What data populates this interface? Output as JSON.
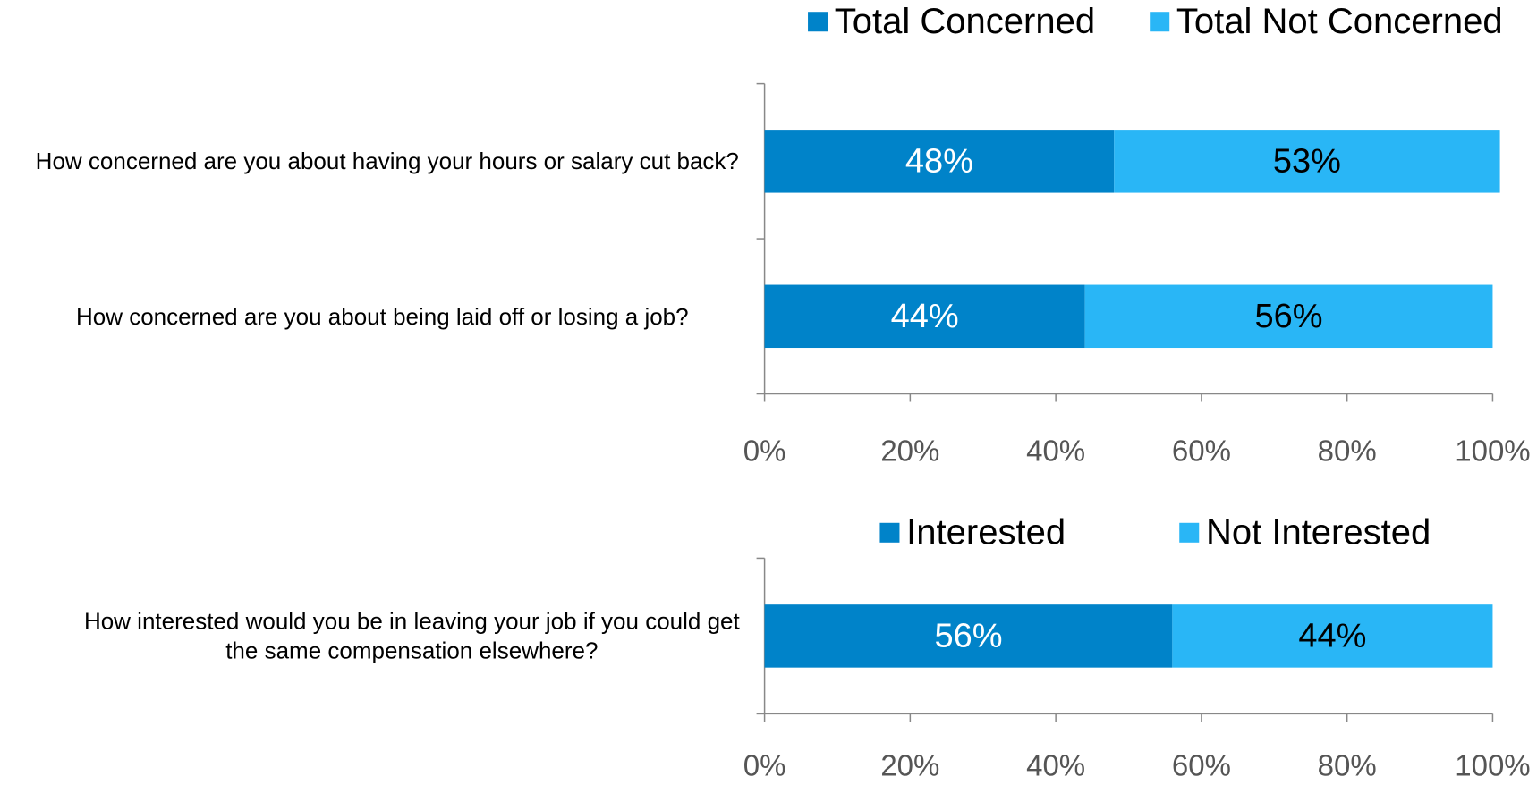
{
  "chart_data": [
    {
      "type": "stacked-bar-horizontal",
      "categories": [
        "How concerned are you about having your hours or salary cut back?",
        "How concerned are you about being laid off or losing a job?"
      ],
      "series": [
        {
          "name": "Total Concerned",
          "color": "#0083c9",
          "values": [
            48,
            44
          ],
          "value_labels": [
            "48%",
            "44%"
          ]
        },
        {
          "name": "Total Not Concerned",
          "color": "#29b6f6",
          "values": [
            53,
            56
          ],
          "value_labels": [
            "53%",
            "56%"
          ]
        }
      ],
      "xlim": [
        0,
        100
      ],
      "xticks": [
        {
          "value": 0,
          "label": "0%"
        },
        {
          "value": 20,
          "label": "20%"
        },
        {
          "value": 40,
          "label": "40%"
        },
        {
          "value": 60,
          "label": "60%"
        },
        {
          "value": 80,
          "label": "80%"
        },
        {
          "value": 100,
          "label": "100%"
        }
      ],
      "legend": "top"
    },
    {
      "type": "stacked-bar-horizontal",
      "categories": [
        "How interested would you be in leaving your job if you could get the same compensation elsewhere?"
      ],
      "series": [
        {
          "name": "Interested",
          "color": "#0083c9",
          "values": [
            56
          ],
          "value_labels": [
            "56%"
          ]
        },
        {
          "name": "Not Interested",
          "color": "#29b6f6",
          "values": [
            44
          ],
          "value_labels": [
            "44%"
          ]
        }
      ],
      "xlim": [
        0,
        100
      ],
      "xticks": [
        {
          "value": 0,
          "label": "0%"
        },
        {
          "value": 20,
          "label": "20%"
        },
        {
          "value": 40,
          "label": "40%"
        },
        {
          "value": 60,
          "label": "60%"
        },
        {
          "value": 80,
          "label": "80%"
        },
        {
          "value": 100,
          "label": "100%"
        }
      ],
      "legend": "top"
    }
  ]
}
